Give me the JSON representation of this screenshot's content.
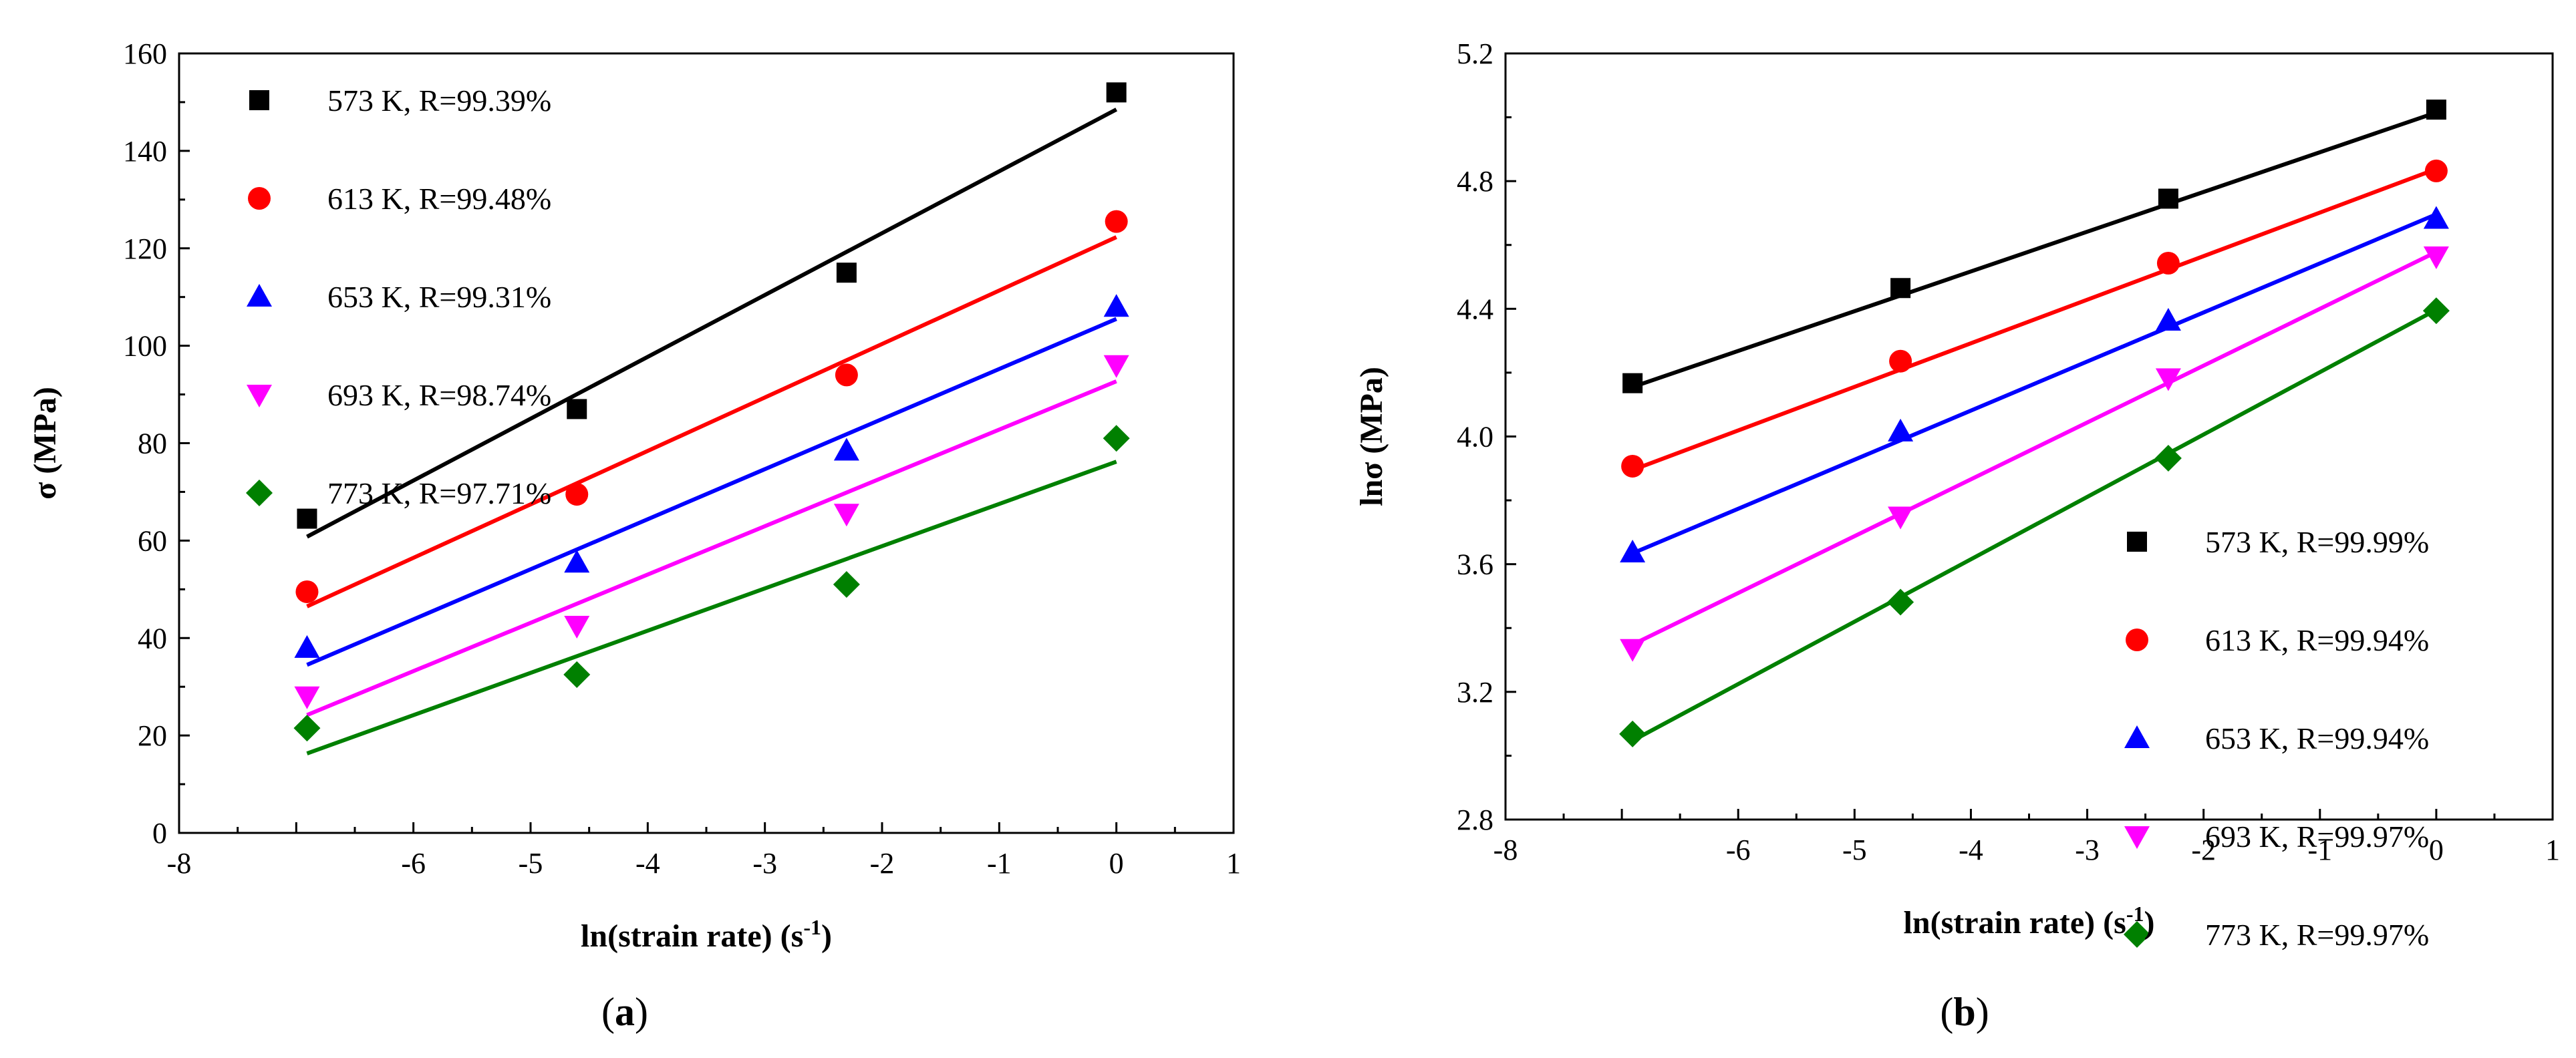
{
  "chart_data": [
    {
      "type": "scatter",
      "panel_label": {
        "open": "(",
        "letter": "a",
        "close": ")"
      },
      "xlabel": {
        "main": "ln(strain rate) (s",
        "sup": "-1",
        "tail": ")"
      },
      "ylabel": {
        "main": "σ (MPa)"
      },
      "xlim": [
        -8,
        1
      ],
      "ylim": [
        0,
        160
      ],
      "xticks": [
        -8,
        -7,
        -6,
        -5,
        -4,
        -3,
        -2,
        -1,
        0,
        1
      ],
      "xtick_labels": [
        "-8",
        "",
        "-6",
        "-5",
        "-4",
        "-3",
        "-2",
        "-1",
        "0",
        "1"
      ],
      "yticks": [
        0,
        20,
        40,
        60,
        80,
        100,
        120,
        140,
        160
      ],
      "ytick_labels": [
        "0",
        "20",
        "40",
        "60",
        "80",
        "100",
        "120",
        "140",
        "160"
      ],
      "legend_position": "top-left",
      "x": [
        -6.908,
        -4.605,
        -2.303,
        0
      ],
      "series": [
        {
          "name": "573 K, R=99.39%",
          "marker": "square",
          "color": "#000000",
          "values": [
            64.5,
            87,
            115,
            152
          ],
          "fit": [
            60.8,
            148.5
          ]
        },
        {
          "name": "613 K, R=99.48%",
          "marker": "circle",
          "color": "#ff0000",
          "values": [
            49.5,
            69.5,
            94,
            125.5
          ],
          "fit": [
            46.5,
            122.3
          ]
        },
        {
          "name": "653 K, R=99.31%",
          "marker": "triangle-up",
          "color": "#0000ff",
          "values": [
            38,
            55.5,
            78.5,
            108
          ],
          "fit": [
            34.5,
            105.5
          ]
        },
        {
          "name": "693 K, R=98.74%",
          "marker": "triangle-down",
          "color": "#ff00ff",
          "values": [
            28,
            42.5,
            65.5,
            96
          ],
          "fit": [
            24.2,
            92.7
          ]
        },
        {
          "name": "773 K, R=97.71%",
          "marker": "diamond",
          "color": "#008000",
          "values": [
            21.5,
            32.5,
            51,
            81
          ],
          "fit": [
            16.3,
            76.2
          ]
        }
      ]
    },
    {
      "type": "scatter",
      "panel_label": {
        "open": "(",
        "letter": "b",
        "close": ")"
      },
      "xlabel": {
        "main": "ln(strain rate) (s",
        "sup": "-1",
        "tail": ")"
      },
      "ylabel": {
        "main": "lnσ (MPa)"
      },
      "xlim": [
        -8,
        1
      ],
      "ylim": [
        2.8,
        5.2
      ],
      "xticks": [
        -8,
        -7,
        -6,
        -5,
        -4,
        -3,
        -2,
        -1,
        0,
        1
      ],
      "xtick_labels": [
        "-8",
        "",
        "-6",
        "-5",
        "-4",
        "-3",
        "-2",
        "-1",
        "0",
        "1"
      ],
      "yticks": [
        2.8,
        3.2,
        3.6,
        4.0,
        4.4,
        4.8,
        5.2
      ],
      "ytick_labels": [
        "2.8",
        "3.2",
        "3.6",
        "4.0",
        "4.4",
        "4.8",
        "5.2"
      ],
      "legend_position": "bottom-right",
      "x": [
        -6.908,
        -4.605,
        -2.303,
        0
      ],
      "series": [
        {
          "name": "573 K, R=99.99%",
          "marker": "square",
          "color": "#000000",
          "values": [
            4.167,
            4.465,
            4.745,
            5.024
          ],
          "fit": [
            4.155,
            5.015
          ]
        },
        {
          "name": "613 K, R=99.94%",
          "marker": "circle",
          "color": "#ff0000",
          "values": [
            3.907,
            4.236,
            4.543,
            4.832
          ],
          "fit": [
            3.895,
            4.838
          ]
        },
        {
          "name": "653 K, R=99.94%",
          "marker": "triangle-up",
          "color": "#0000ff",
          "values": [
            3.637,
            4.016,
            4.363,
            4.682
          ],
          "fit": [
            3.634,
            4.696
          ]
        },
        {
          "name": "693 K, R=99.97%",
          "marker": "triangle-down",
          "color": "#ff00ff",
          "values": [
            3.334,
            3.749,
            4.182,
            4.564
          ],
          "fit": [
            3.348,
            4.578
          ]
        },
        {
          "name": "773 K, R=99.97%",
          "marker": "diamond",
          "color": "#008000",
          "values": [
            3.068,
            3.481,
            3.932,
            4.394
          ],
          "fit": [
            3.047,
            4.397
          ]
        }
      ]
    }
  ]
}
